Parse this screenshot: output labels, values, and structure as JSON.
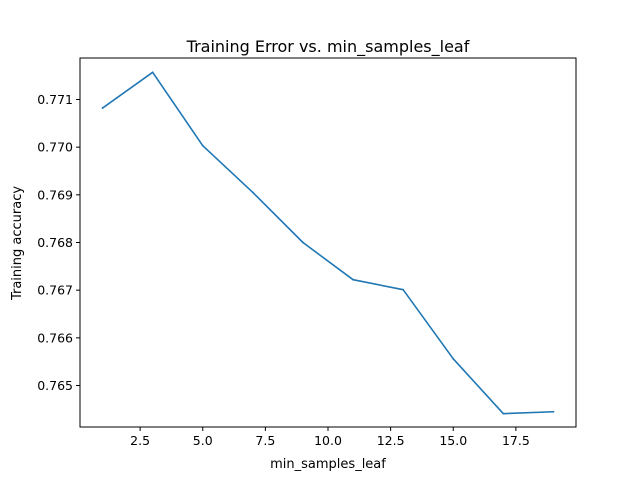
{
  "chart_data": {
    "type": "line",
    "title": "Training Error vs. min_samples_leaf",
    "xlabel": "min_samples_leaf",
    "ylabel": "Training accuracy",
    "xlim": [
      0.1,
      19.9
    ],
    "ylim": [
      0.76413,
      0.77187
    ],
    "xticks": [
      2.5,
      5.0,
      7.5,
      10.0,
      12.5,
      15.0,
      17.5
    ],
    "xtick_labels": [
      "2.5",
      "5.0",
      "7.5",
      "10.0",
      "12.5",
      "15.0",
      "17.5"
    ],
    "yticks": [
      0.765,
      0.766,
      0.767,
      0.768,
      0.769,
      0.77,
      0.771
    ],
    "ytick_labels": [
      "0.765",
      "0.766",
      "0.767",
      "0.768",
      "0.769",
      "0.770",
      "0.771"
    ],
    "grid": false,
    "series": [
      {
        "name": "training accuracy",
        "color": "#1f77b4",
        "x": [
          1,
          3,
          5,
          7,
          9,
          11,
          13,
          15,
          17,
          19
        ],
        "y": [
          0.77082,
          0.77157,
          0.77003,
          0.76905,
          0.768,
          0.76722,
          0.76701,
          0.76556,
          0.76441,
          0.76445
        ]
      }
    ]
  }
}
